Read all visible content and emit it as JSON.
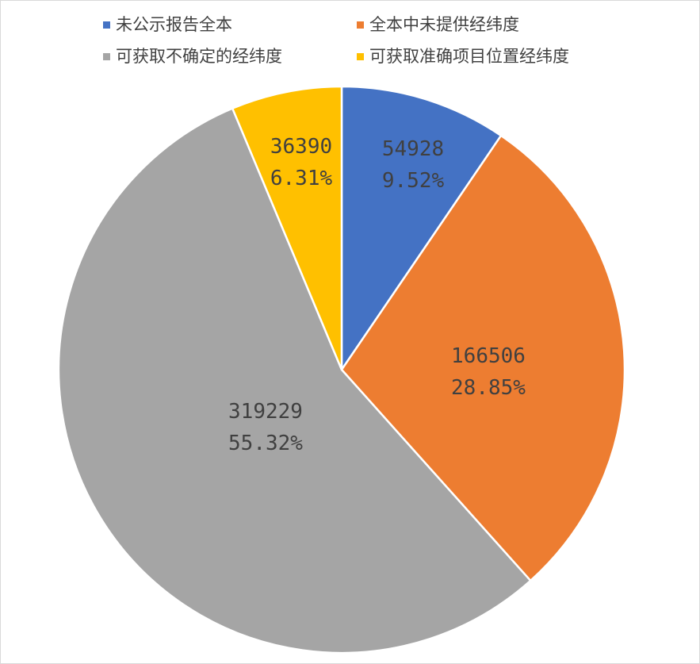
{
  "chart_data": {
    "type": "pie",
    "title": "",
    "categories": [
      "未公示报告全本",
      "全本中未提供经纬度",
      "可获取不确定的经纬度",
      "可获取准确项目位置经纬度"
    ],
    "values": [
      54928,
      166506,
      319229,
      36390
    ],
    "percent_labels": [
      "9.52%",
      "28.85%",
      "55.32%",
      "6.31%"
    ],
    "colors": [
      "#4472C4",
      "#ED7D31",
      "#A5A5A5",
      "#FFC000"
    ],
    "start_angle_deg": 0,
    "direction": "clockwise",
    "legend_position": "top"
  }
}
